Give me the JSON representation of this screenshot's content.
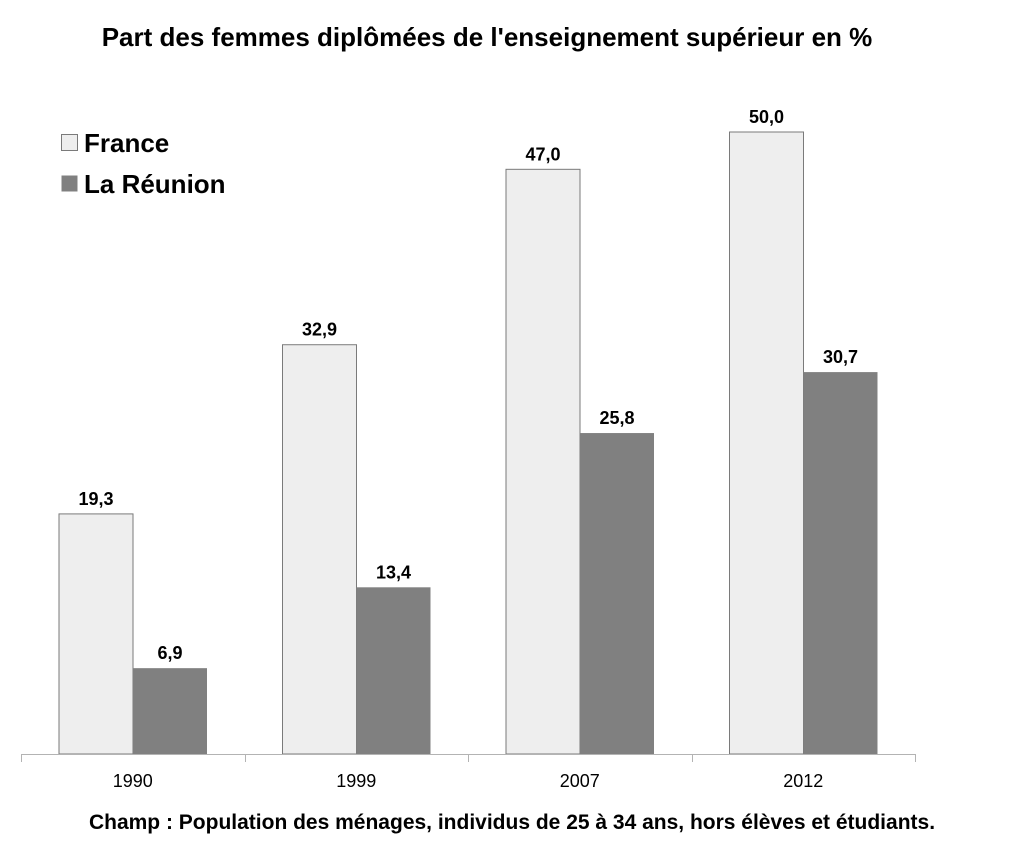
{
  "chart_data": {
    "type": "bar",
    "title": "Part des femmes diplômées de l'enseignement supérieur en %",
    "footnote": "Champ : Population des ménages, individus de 25 à 34 ans, hors élèves et étudiants.",
    "categories": [
      "1990",
      "1999",
      "2007",
      "2012"
    ],
    "series": [
      {
        "name": "France",
        "values": [
          19.3,
          32.9,
          47.0,
          50.0
        ],
        "labels": [
          "19,3",
          "32,9",
          "47,0",
          "50,0"
        ],
        "color": "#eeeeee"
      },
      {
        "name": "La Réunion",
        "values": [
          6.9,
          13.4,
          25.8,
          30.7
        ],
        "labels": [
          "6,9",
          "13,4",
          "25,8",
          "30,7"
        ],
        "color": "#808080"
      }
    ],
    "ylim": [
      0,
      50
    ],
    "grid": false,
    "legend": "top-left",
    "xlabel": "",
    "ylabel": ""
  }
}
